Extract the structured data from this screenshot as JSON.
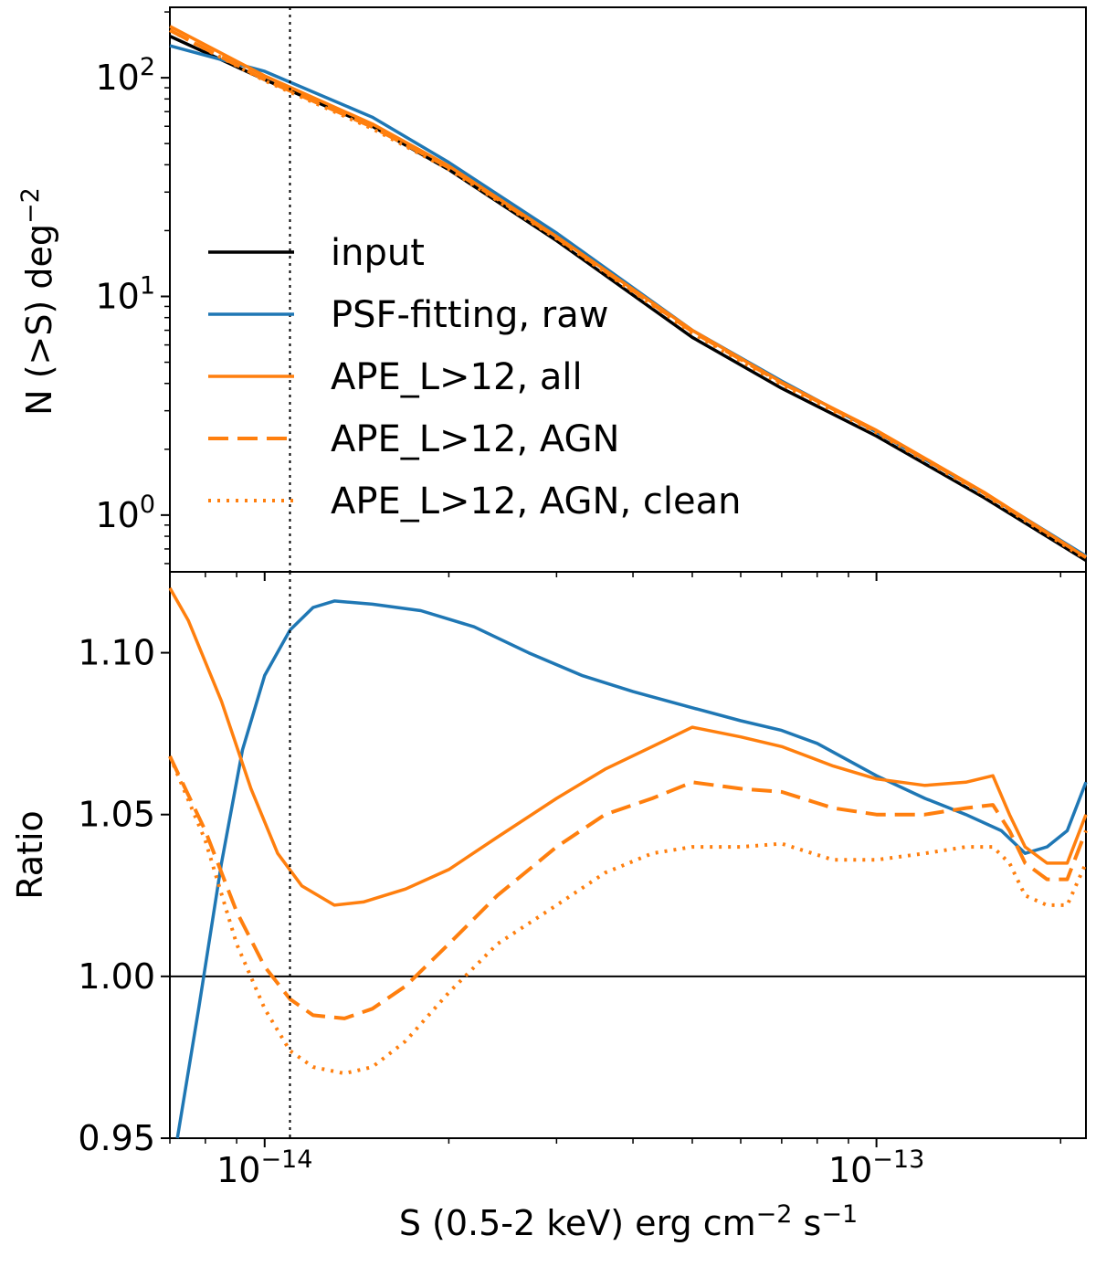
{
  "chart_data": [
    {
      "type": "line",
      "panel": "top",
      "ylabel": "N (>S) deg",
      "ylabel_sup": "−2",
      "xscale": "log",
      "yscale": "log",
      "xlim": [
        7e-15,
        2.2e-13
      ],
      "ylim": [
        0.55,
        210
      ],
      "yticks": [
        {
          "value": 1,
          "base": "10",
          "exp": "0"
        },
        {
          "value": 10,
          "base": "10",
          "exp": "1"
        },
        {
          "value": 100,
          "base": "10",
          "exp": "2"
        }
      ],
      "vline_x": 1.1e-14,
      "legend_position": "center-left",
      "series": [
        {
          "name": "input",
          "color": "#000000",
          "style": "solid",
          "x": [
            7e-15,
            1e-14,
            1.5e-14,
            2e-14,
            3e-14,
            5e-14,
            7e-14,
            1e-13,
            1.5e-13,
            2.2e-13
          ],
          "y": [
            155,
            98,
            60,
            38,
            18,
            6.5,
            3.8,
            2.3,
            1.2,
            0.62
          ]
        },
        {
          "name": "PSF-fitting, raw",
          "color": "#1f77b4",
          "style": "solid",
          "x": [
            7e-15,
            1e-14,
            1.5e-14,
            2e-14,
            3e-14,
            5e-14,
            7e-14,
            1e-13,
            1.5e-13,
            2.2e-13
          ],
          "y": [
            140,
            107,
            66,
            41,
            19.5,
            7.0,
            4.1,
            2.4,
            1.26,
            0.65
          ]
        },
        {
          "name": "APE_L>12, all",
          "color": "#ff7f0e",
          "style": "solid",
          "x": [
            7e-15,
            1e-14,
            1.5e-14,
            2e-14,
            3e-14,
            5e-14,
            7e-14,
            1e-13,
            1.5e-13,
            2.2e-13
          ],
          "y": [
            172,
            102,
            61.5,
            39.5,
            18.8,
            7.0,
            4.05,
            2.44,
            1.27,
            0.64
          ]
        },
        {
          "name": "APE_L>12, AGN",
          "color": "#ff7f0e",
          "style": "dashed",
          "x": [
            7e-15,
            1e-14,
            1.5e-14,
            2e-14,
            3e-14,
            5e-14,
            7e-14,
            1e-13,
            1.5e-13,
            2.2e-13
          ],
          "y": [
            165,
            98,
            59.5,
            38.8,
            18.6,
            6.9,
            4.02,
            2.42,
            1.26,
            0.64
          ]
        },
        {
          "name": "APE_L>12, AGN, clean",
          "color": "#ff7f0e",
          "style": "dotted",
          "x": [
            7e-15,
            1e-14,
            1.5e-14,
            2e-14,
            3e-14,
            5e-14,
            7e-14,
            1e-13,
            1.5e-13,
            2.2e-13
          ],
          "y": [
            165,
            97,
            58.5,
            38.2,
            18.4,
            6.8,
            3.95,
            2.38,
            1.24,
            0.63
          ]
        }
      ]
    },
    {
      "type": "line",
      "panel": "bottom",
      "ylabel": "Ratio",
      "xlabel": "S (0.5-2 keV) erg cm",
      "xlabel_parts": [
        "S (0.5-2 keV) erg cm",
        "−2",
        " s",
        "−1"
      ],
      "xscale": "log",
      "xlim": [
        7e-15,
        2.2e-13
      ],
      "ylim": [
        0.95,
        1.125
      ],
      "yticks": [
        "0.95",
        "1.00",
        "1.05",
        "1.10"
      ],
      "yticks_values": [
        0.95,
        1.0,
        1.05,
        1.1
      ],
      "xticks": [
        {
          "value": 1e-14,
          "base": "10",
          "exp": "−14"
        },
        {
          "value": 1e-13,
          "base": "10",
          "exp": "−13"
        }
      ],
      "hline_y": 1.0,
      "vline_x": 1.1e-14,
      "series": [
        {
          "name": "PSF-fitting, raw",
          "color": "#1f77b4",
          "style": "solid",
          "x": [
            7.2e-15,
            7.8e-15,
            8.5e-15,
            9.2e-15,
            1e-14,
            1.1e-14,
            1.2e-14,
            1.3e-14,
            1.5e-14,
            1.8e-14,
            2.2e-14,
            2.7e-14,
            3.3e-14,
            4e-14,
            5e-14,
            6e-14,
            7e-14,
            8e-14,
            1e-13,
            1.2e-13,
            1.4e-13,
            1.6e-13,
            1.75e-13,
            1.9e-13,
            2.05e-13,
            2.2e-13
          ],
          "y": [
            0.95,
            0.99,
            1.035,
            1.07,
            1.093,
            1.107,
            1.114,
            1.116,
            1.115,
            1.113,
            1.108,
            1.1,
            1.093,
            1.088,
            1.083,
            1.079,
            1.076,
            1.072,
            1.062,
            1.055,
            1.05,
            1.045,
            1.038,
            1.04,
            1.045,
            1.06
          ]
        },
        {
          "name": "APE_L>12, all",
          "color": "#ff7f0e",
          "style": "solid",
          "x": [
            7e-15,
            7.5e-15,
            8.5e-15,
            9.5e-15,
            1.05e-14,
            1.15e-14,
            1.3e-14,
            1.45e-14,
            1.7e-14,
            2e-14,
            2.4e-14,
            3e-14,
            3.6e-14,
            4.3e-14,
            5e-14,
            6e-14,
            7e-14,
            8.5e-14,
            1e-13,
            1.2e-13,
            1.4e-13,
            1.55e-13,
            1.65e-13,
            1.75e-13,
            1.9e-13,
            2.05e-13,
            2.2e-13
          ],
          "y": [
            1.12,
            1.11,
            1.085,
            1.058,
            1.038,
            1.028,
            1.022,
            1.023,
            1.027,
            1.033,
            1.043,
            1.055,
            1.064,
            1.071,
            1.077,
            1.074,
            1.071,
            1.065,
            1.061,
            1.059,
            1.06,
            1.062,
            1.05,
            1.04,
            1.035,
            1.035,
            1.05
          ]
        },
        {
          "name": "APE_L>12, AGN",
          "color": "#ff7f0e",
          "style": "dashed",
          "x": [
            7e-15,
            8e-15,
            9e-15,
            1e-14,
            1.1e-14,
            1.2e-14,
            1.35e-14,
            1.5e-14,
            1.7e-14,
            2e-14,
            2.4e-14,
            3e-14,
            3.6e-14,
            4.3e-14,
            5e-14,
            6e-14,
            7e-14,
            8.5e-14,
            1e-13,
            1.2e-13,
            1.4e-13,
            1.55e-13,
            1.65e-13,
            1.75e-13,
            1.9e-13,
            2.05e-13,
            2.2e-13
          ],
          "y": [
            1.068,
            1.045,
            1.02,
            1.003,
            0.993,
            0.988,
            0.987,
            0.99,
            0.997,
            1.01,
            1.025,
            1.04,
            1.05,
            1.055,
            1.06,
            1.058,
            1.057,
            1.052,
            1.05,
            1.05,
            1.052,
            1.053,
            1.045,
            1.035,
            1.03,
            1.03,
            1.045
          ]
        },
        {
          "name": "APE_L>12, AGN, clean",
          "color": "#ff7f0e",
          "style": "dotted",
          "x": [
            7e-15,
            8e-15,
            9e-15,
            1e-14,
            1.1e-14,
            1.2e-14,
            1.35e-14,
            1.5e-14,
            1.7e-14,
            2e-14,
            2.4e-14,
            3e-14,
            3.6e-14,
            4.3e-14,
            5e-14,
            6e-14,
            7e-14,
            8.5e-14,
            1e-13,
            1.2e-13,
            1.4e-13,
            1.55e-13,
            1.65e-13,
            1.75e-13,
            1.9e-13,
            2.05e-13,
            2.2e-13
          ],
          "y": [
            1.068,
            1.042,
            1.01,
            0.99,
            0.977,
            0.972,
            0.97,
            0.972,
            0.98,
            0.995,
            1.01,
            1.022,
            1.032,
            1.038,
            1.04,
            1.04,
            1.041,
            1.036,
            1.036,
            1.038,
            1.04,
            1.04,
            1.035,
            1.025,
            1.022,
            1.022,
            1.035
          ]
        }
      ]
    }
  ]
}
